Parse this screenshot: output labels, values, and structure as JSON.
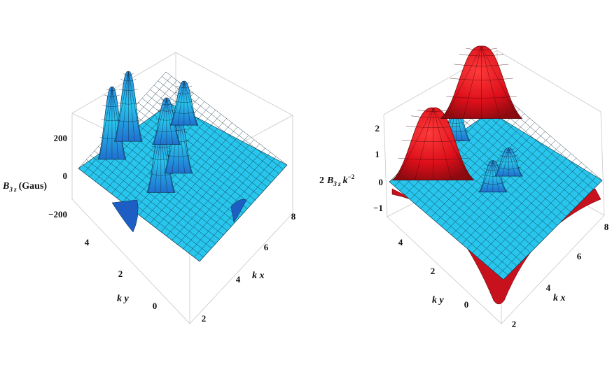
{
  "chart_data": [
    {
      "type": "surface3d",
      "title": "",
      "xlabel": "k x",
      "ylabel": "k y",
      "zlabel": {
        "symbol": "B",
        "sub": "3 z",
        "suffix": "(Gaus)"
      },
      "xticks": [
        2,
        4,
        6,
        8
      ],
      "yticks": [
        0,
        2,
        4
      ],
      "zticks": [
        200,
        0,
        -200
      ],
      "ztick_labels": [
        "200",
        "0",
        "−200"
      ],
      "xlim": [
        1,
        8.5
      ],
      "ylim": [
        -1,
        5.5
      ],
      "zlim": [
        -300,
        300
      ],
      "surface_color": "#29c7ec",
      "peaks": [
        {
          "x": 2.6,
          "y": 4.7,
          "z": 280
        },
        {
          "x": 4.0,
          "y": 4.7,
          "z": 270
        },
        {
          "x": 2.8,
          "y": 2.2,
          "z": 240
        },
        {
          "x": 4.3,
          "y": 2.2,
          "z": 230
        },
        {
          "x": 5.2,
          "y": 3.4,
          "z": 180
        },
        {
          "x": 6.7,
          "y": 3.4,
          "z": 170
        },
        {
          "x": 1.6,
          "y": 1.0,
          "z": -260
        },
        {
          "x": 8.0,
          "y": 5.0,
          "z": -250
        }
      ]
    },
    {
      "type": "surface3d",
      "title": "",
      "xlabel": "k x",
      "ylabel": "k y",
      "zlabel": {
        "prefix": "2",
        "symbol": "B",
        "sub": "3 z",
        "suffix": "k",
        "sup": "−2"
      },
      "xticks": [
        2,
        4,
        6,
        8
      ],
      "yticks": [
        0,
        2,
        4
      ],
      "zticks": [
        2,
        1,
        0,
        -1
      ],
      "ztick_labels": [
        "2",
        "1",
        "0",
        "−1"
      ],
      "xlim": [
        1,
        8.5
      ],
      "ylim": [
        -1,
        5.5
      ],
      "zlim": [
        -1.6,
        2.6
      ],
      "series": [
        {
          "color": "#29c7ec"
        },
        {
          "color": "#e8101e"
        }
      ],
      "peaks": [
        {
          "x": 4.0,
          "y": 4.7,
          "z": 1.2
        },
        {
          "x": 5.0,
          "y": 4.7,
          "z": 1.1
        },
        {
          "x": 4.2,
          "y": 2.0,
          "z": 1.0
        },
        {
          "x": 5.4,
          "y": 2.0,
          "z": 0.9
        }
      ],
      "red_peaks": [
        {
          "x": 2.6,
          "y": 4.2,
          "z": 2.3
        },
        {
          "x": 6.8,
          "y": 4.6,
          "z": 2.3
        }
      ]
    }
  ]
}
